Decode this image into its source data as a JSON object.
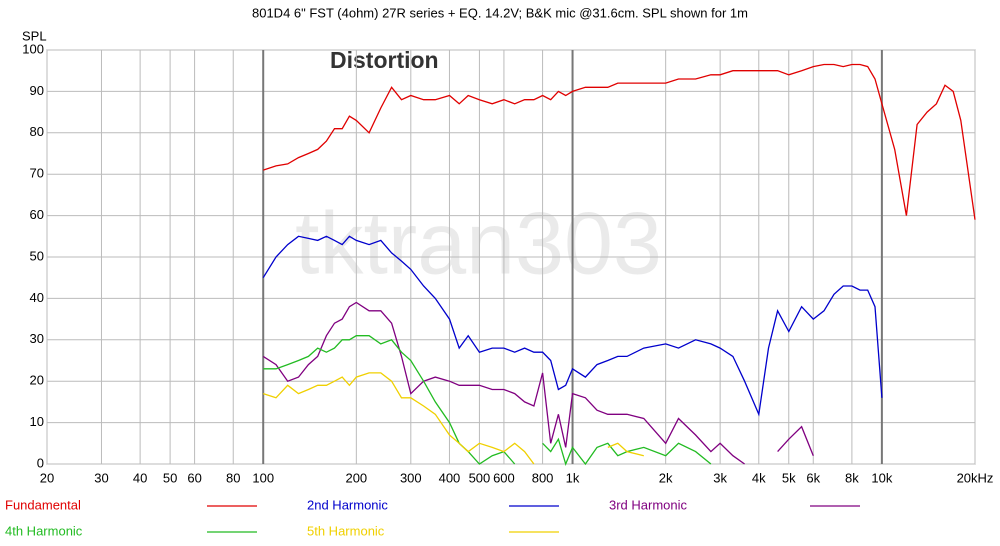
{
  "chart_data": {
    "type": "line",
    "title": "801D4 6\" FST (4ohm) 27R series + EQ. 14.2V; B&K mic @31.6cm. SPL shown for 1m",
    "y_label": "SPL",
    "annotation": "Distortion",
    "watermark": "tktran303",
    "log_x": true,
    "grid": true,
    "xlim": [
      20,
      20000
    ],
    "ylim": [
      0,
      100
    ],
    "xticks": [
      20,
      30,
      40,
      50,
      60,
      80,
      100,
      200,
      300,
      400,
      500,
      600,
      800,
      {
        "value": 1000,
        "label": "1k"
      },
      {
        "value": 2000,
        "label": "2k"
      },
      {
        "value": 3000,
        "label": "3k"
      },
      {
        "value": 4000,
        "label": "4k"
      },
      {
        "value": 5000,
        "label": "5k"
      },
      {
        "value": 6000,
        "label": "6k"
      },
      {
        "value": 8000,
        "label": "8k"
      },
      {
        "value": 10000,
        "label": "10k"
      },
      {
        "value": 20000,
        "label": "20kHz"
      }
    ],
    "yticks": [
      0,
      10,
      20,
      30,
      40,
      50,
      60,
      70,
      80,
      90,
      100
    ],
    "x": [
      100,
      110,
      120,
      130,
      140,
      150,
      160,
      170,
      180,
      190,
      200,
      220,
      240,
      260,
      280,
      300,
      330,
      360,
      400,
      430,
      460,
      500,
      550,
      600,
      650,
      700,
      750,
      800,
      850,
      900,
      950,
      1000,
      1100,
      1200,
      1300,
      1400,
      1500,
      1700,
      2000,
      2200,
      2500,
      2800,
      3000,
      3300,
      3600,
      4000,
      4300,
      4600,
      5000,
      5500,
      6000,
      6500,
      7000,
      7500,
      8000,
      8500,
      9000,
      9500,
      10000,
      11000,
      12000,
      13000,
      14000,
      15000,
      16000,
      17000,
      18000,
      20000
    ],
    "series": [
      {
        "name": "Fundamental",
        "color": "#e00000",
        "values": [
          71,
          72,
          72.5,
          74,
          75,
          76,
          78,
          81,
          81,
          84,
          83,
          80,
          86,
          91,
          88,
          89,
          88,
          88,
          89,
          87,
          89,
          88,
          87,
          88,
          87,
          88,
          88,
          89,
          88,
          90,
          89,
          90,
          91,
          91,
          91,
          92,
          92,
          92,
          92,
          93,
          93,
          94,
          94,
          95,
          95,
          95,
          95,
          95,
          94,
          95,
          96,
          96.5,
          96.5,
          96,
          96.5,
          96.5,
          96,
          93,
          87,
          76,
          60,
          82,
          85,
          87,
          91.5,
          90,
          83,
          59
        ]
      },
      {
        "name": "2nd Harmonic",
        "color": "#0000cc",
        "values": [
          45,
          50,
          53,
          55,
          54.5,
          54,
          55,
          54,
          53,
          55,
          54,
          53,
          54,
          51,
          49,
          47,
          43,
          40,
          35,
          28,
          31,
          27,
          28,
          28,
          27,
          28,
          27,
          27,
          25,
          18,
          19,
          23,
          21,
          24,
          25,
          26,
          26,
          28,
          29,
          28,
          30,
          29,
          28,
          26,
          20,
          12,
          28,
          37,
          32,
          38,
          35,
          37,
          41,
          43,
          43,
          42,
          42,
          38,
          16,
          null,
          null,
          null,
          null,
          null,
          null,
          null,
          null,
          null
        ]
      },
      {
        "name": "3rd Harmonic",
        "color": "#800080",
        "values": [
          26,
          24,
          20,
          21,
          24,
          26,
          31,
          34,
          35,
          38,
          39,
          37,
          37,
          34,
          26,
          17,
          20,
          21,
          20,
          19,
          19,
          19,
          18,
          18,
          17,
          15,
          14,
          22,
          5,
          12,
          4,
          17,
          16,
          13,
          12,
          12,
          12,
          11,
          5,
          11,
          7,
          3,
          5,
          2,
          0,
          null,
          null,
          3,
          6,
          9,
          2,
          null,
          null,
          null,
          null,
          null,
          null,
          null,
          null,
          null,
          null,
          null,
          null,
          null,
          null,
          null,
          null,
          null
        ]
      },
      {
        "name": "4th Harmonic",
        "color": "#22bb22",
        "values": [
          23,
          23,
          24,
          25,
          26,
          28,
          27,
          28,
          30,
          30,
          31,
          31,
          29,
          30,
          27,
          25,
          20,
          15,
          10,
          5,
          3,
          0,
          2,
          3,
          0,
          null,
          null,
          5,
          3,
          6,
          0,
          4,
          0,
          4,
          5,
          2,
          3,
          4,
          2,
          5,
          3,
          0,
          null,
          null,
          null,
          0,
          null,
          null,
          null,
          null,
          null,
          null,
          null,
          null,
          null,
          null,
          null,
          null,
          null,
          null,
          null,
          null,
          null,
          null,
          null,
          null,
          null,
          null
        ]
      },
      {
        "name": "5th Harmonic",
        "color": "#f0d000",
        "values": [
          17,
          16,
          19,
          17,
          18,
          19,
          19,
          20,
          21,
          19,
          21,
          22,
          22,
          20,
          16,
          16,
          14,
          12,
          7,
          5,
          3,
          5,
          4,
          3,
          5,
          3,
          0,
          null,
          null,
          null,
          null,
          null,
          null,
          null,
          4,
          5,
          3,
          2,
          null,
          null,
          null,
          null,
          null,
          null,
          null,
          null,
          null,
          null,
          null,
          null,
          null,
          null,
          null,
          null,
          null,
          null,
          null,
          null,
          null,
          null,
          null,
          null,
          null,
          null,
          null,
          null,
          null,
          null
        ]
      }
    ]
  }
}
